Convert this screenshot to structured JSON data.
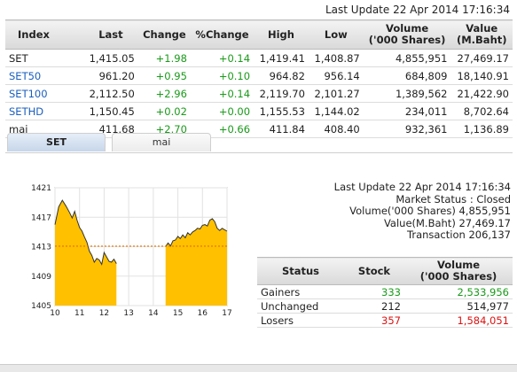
{
  "last_update_top": "Last Update 22 Apr 2014 17:16:34",
  "index_table": {
    "headers": [
      "Index",
      "Last",
      "Change",
      "%Change",
      "High",
      "Low",
      "Volume\n('000 Shares)",
      "Value\n(M.Baht)"
    ],
    "rows": [
      {
        "index": "SET",
        "last": "1,415.05",
        "change": "+1.98",
        "pchange": "+0.14",
        "high": "1,419.41",
        "low": "1,408.87",
        "volume": "4,855,951",
        "value": "27,469.17"
      },
      {
        "index": "SET50",
        "last": "961.20",
        "change": "+0.95",
        "pchange": "+0.10",
        "high": "964.82",
        "low": "956.14",
        "volume": "684,809",
        "value": "18,140.91"
      },
      {
        "index": "SET100",
        "last": "2,112.50",
        "change": "+2.96",
        "pchange": "+0.14",
        "high": "2,119.70",
        "low": "2,101.27",
        "volume": "1,389,562",
        "value": "21,422.90"
      },
      {
        "index": "SETHD",
        "last": "1,150.45",
        "change": "+0.02",
        "pchange": "+0.00",
        "high": "1,155.53",
        "low": "1,144.02",
        "volume": "234,011",
        "value": "8,702.64"
      },
      {
        "index": "mai",
        "last": "411.68",
        "change": "+2.70",
        "pchange": "+0.66",
        "high": "411.84",
        "low": "408.40",
        "volume": "932,361",
        "value": "1,136.89"
      }
    ]
  },
  "tabs": [
    {
      "label": "SET"
    },
    {
      "label": "mai"
    }
  ],
  "market_info": {
    "last_update": "Last Update 22 Apr 2014 17:16:34",
    "market_status": "Market Status : Closed",
    "volume": "Volume('000 Shares) 4,855,951",
    "value": "Value(M.Baht) 27,469.17",
    "transaction": "Transaction 206,137"
  },
  "status_table": {
    "headers": [
      "Status",
      "Stock",
      "Volume\n('000 Shares)"
    ],
    "rows": [
      {
        "status": "Gainers",
        "stock": "333",
        "volume": "2,533,956",
        "color": "#1a9a1a"
      },
      {
        "status": "Unchanged",
        "stock": "212",
        "volume": "514,977",
        "color": "#222222"
      },
      {
        "status": "Losers",
        "stock": "357",
        "volume": "1,584,051",
        "color": "#dd1111"
      }
    ]
  },
  "colors": {
    "up": "#1a9a1a",
    "down": "#dd1111",
    "area": "#ffc000",
    "prev_close_line": "#e07000",
    "link": "#1b5fbf"
  },
  "chart_data": {
    "type": "area",
    "x_tick_labels": [
      "10",
      "11",
      "12",
      "13",
      "14",
      "15",
      "16",
      "17"
    ],
    "y_tick_labels": [
      "1421",
      "1417",
      "1413",
      "1409",
      "1405"
    ],
    "ylim": [
      1405,
      1421
    ],
    "xlim": [
      10,
      17
    ],
    "baseline": 1405,
    "previous_close": 1413.07,
    "series": [
      {
        "x": [
          10.0,
          10.15,
          10.3,
          10.45,
          10.6,
          10.7,
          10.8,
          10.9,
          11.0,
          11.1,
          11.2,
          11.3,
          11.4,
          11.5,
          11.6,
          11.7,
          11.8,
          11.9,
          12.0,
          12.1,
          12.2,
          12.3,
          12.4,
          12.5,
          14.5,
          14.6,
          14.7,
          14.8,
          14.9,
          15.0,
          15.1,
          15.2,
          15.3,
          15.4,
          15.5,
          15.6,
          15.7,
          15.8,
          15.9,
          16.0,
          16.1,
          16.2,
          16.3,
          16.4,
          16.5,
          16.6,
          16.7,
          16.8,
          16.9,
          17.0
        ],
        "y": [
          1416.0,
          1418.4,
          1419.3,
          1418.5,
          1417.6,
          1416.9,
          1417.8,
          1416.6,
          1415.6,
          1415.1,
          1414.3,
          1413.6,
          1412.4,
          1411.8,
          1410.9,
          1411.4,
          1411.2,
          1410.6,
          1412.2,
          1411.6,
          1411.0,
          1410.9,
          1411.3,
          1410.7,
          1413.0,
          1413.5,
          1413.1,
          1413.8,
          1413.9,
          1414.4,
          1414.1,
          1414.6,
          1414.2,
          1414.9,
          1414.6,
          1415.0,
          1415.2,
          1415.5,
          1415.4,
          1415.9,
          1416.0,
          1415.8,
          1416.6,
          1416.8,
          1416.4,
          1415.5,
          1415.2,
          1415.5,
          1415.3,
          1415.1
        ]
      }
    ]
  }
}
